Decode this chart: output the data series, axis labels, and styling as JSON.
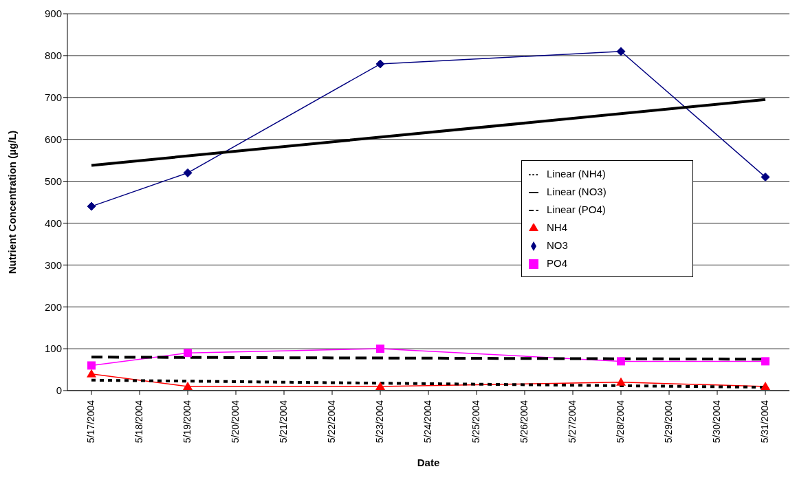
{
  "chart_data": {
    "type": "line",
    "xlabel": "Date",
    "ylabel": "Nutrient Concentration (µg/L)",
    "xlim": [
      "2004-05-16T12:00",
      "2004-05-31T12:00"
    ],
    "xticks": [
      {
        "value": "2004-05-17",
        "label": "5/17/2004"
      },
      {
        "value": "2004-05-18",
        "label": "5/18/2004"
      },
      {
        "value": "2004-05-19",
        "label": "5/19/2004"
      },
      {
        "value": "2004-05-20",
        "label": "5/20/2004"
      },
      {
        "value": "2004-05-21",
        "label": "5/21/2004"
      },
      {
        "value": "2004-05-22",
        "label": "5/22/2004"
      },
      {
        "value": "2004-05-23",
        "label": "5/23/2004"
      },
      {
        "value": "2004-05-24",
        "label": "5/24/2004"
      },
      {
        "value": "2004-05-25",
        "label": "5/25/2004"
      },
      {
        "value": "2004-05-26",
        "label": "5/26/2004"
      },
      {
        "value": "2004-05-27",
        "label": "5/27/2004"
      },
      {
        "value": "2004-05-28",
        "label": "5/28/2004"
      },
      {
        "value": "2004-05-29",
        "label": "5/29/2004"
      },
      {
        "value": "2004-05-30",
        "label": "5/30/2004"
      },
      {
        "value": "2004-05-31",
        "label": "5/31/2004"
      }
    ],
    "ylim": [
      0,
      900
    ],
    "yticks": [
      0,
      100,
      200,
      300,
      400,
      500,
      600,
      700,
      800,
      900
    ],
    "grid": "y",
    "legend": "right",
    "x": [
      "2004-05-17",
      "2004-05-19",
      "2004-05-23",
      "2004-05-28",
      "2004-05-31"
    ],
    "series": [
      {
        "name": "NO3",
        "color": "#000080",
        "marker": "diamond",
        "values": [
          440,
          520,
          780,
          810,
          510
        ]
      },
      {
        "name": "PO4",
        "color": "#ff00ff",
        "marker": "square",
        "values": [
          60,
          90,
          100,
          70,
          70
        ]
      },
      {
        "name": "NH4",
        "color": "#ff0000",
        "marker": "triangle",
        "values": [
          40,
          10,
          10,
          20,
          10
        ]
      },
      {
        "name": "Linear (NO3)",
        "color": "#000000",
        "marker": "none",
        "line_style": "solid",
        "x": [
          "2004-05-17",
          "2004-05-31"
        ],
        "values": [
          538,
          695
        ]
      },
      {
        "name": "Linear (PO4)",
        "color": "#000000",
        "marker": "none",
        "line_style": "dashed",
        "x": [
          "2004-05-17",
          "2004-05-31"
        ],
        "values": [
          80,
          75
        ]
      },
      {
        "name": "Linear (NH4)",
        "color": "#000000",
        "marker": "none",
        "line_style": "dotted",
        "x": [
          "2004-05-17",
          "2004-05-31"
        ],
        "values": [
          25,
          8
        ]
      }
    ]
  }
}
